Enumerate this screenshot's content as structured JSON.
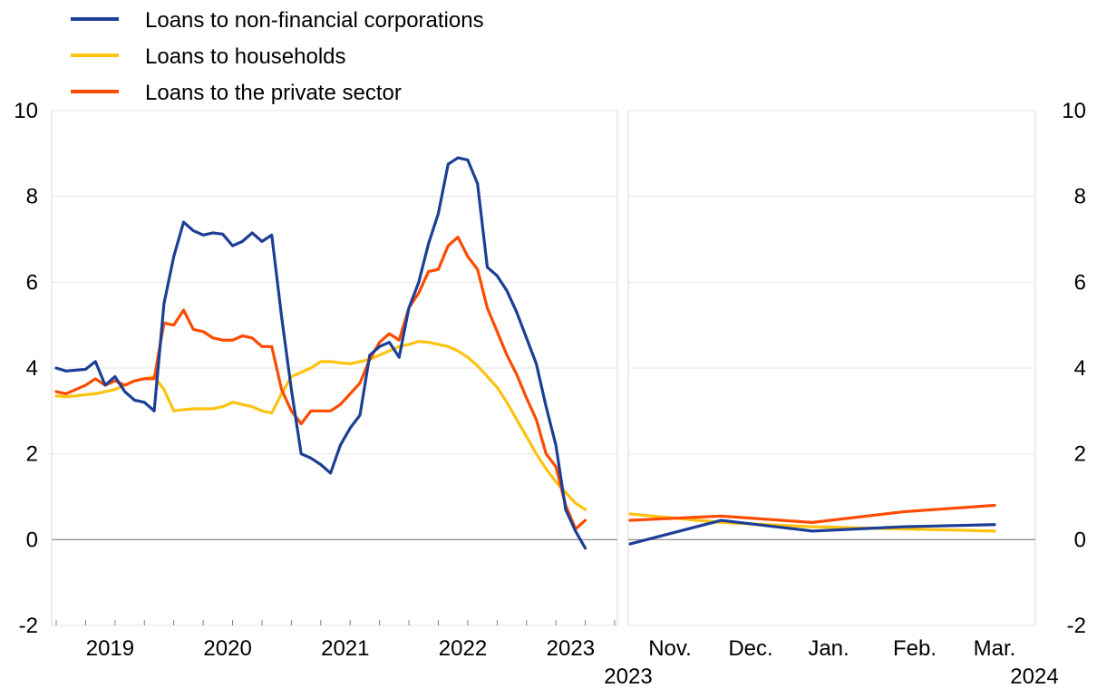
{
  "legend": [
    {
      "label": "Loans to non-financial corporations",
      "color": "#1c3f95"
    },
    {
      "label": "Loans to households",
      "color": "#ffc20e"
    },
    {
      "label": "Loans to the private sector",
      "color": "#ff4b00"
    }
  ],
  "chart_data": [
    {
      "type": "line",
      "panel": "monthly",
      "x_tick_labels": [
        "2019",
        "2020",
        "2021",
        "2022",
        "2023"
      ],
      "ylim": [
        -2,
        10
      ],
      "y_ticks": [
        -2,
        0,
        2,
        4,
        6,
        8,
        10
      ],
      "grid": true,
      "legend_position": "top-left",
      "x": [
        "2019-01",
        "2019-02",
        "2019-03",
        "2019-04",
        "2019-05",
        "2019-06",
        "2019-07",
        "2019-08",
        "2019-09",
        "2019-10",
        "2019-11",
        "2019-12",
        "2020-01",
        "2020-02",
        "2020-03",
        "2020-04",
        "2020-05",
        "2020-06",
        "2020-07",
        "2020-08",
        "2020-09",
        "2020-10",
        "2020-11",
        "2020-12",
        "2021-01",
        "2021-02",
        "2021-03",
        "2021-04",
        "2021-05",
        "2021-06",
        "2021-07",
        "2021-08",
        "2021-09",
        "2021-10",
        "2021-11",
        "2021-12",
        "2022-01",
        "2022-02",
        "2022-03",
        "2022-04",
        "2022-05",
        "2022-06",
        "2022-07",
        "2022-08",
        "2022-09",
        "2022-10",
        "2022-11",
        "2022-12",
        "2023-01",
        "2023-02",
        "2023-03",
        "2023-04",
        "2023-05",
        "2023-06",
        "2023-07",
        "2023-08",
        "2023-09",
        "2023-10"
      ],
      "series": [
        {
          "name": "Loans to non-financial corporations",
          "color": "#1c3f95",
          "values": [
            4.0,
            3.93,
            3.95,
            3.97,
            4.15,
            3.6,
            3.8,
            3.45,
            3.25,
            3.2,
            3.0,
            5.5,
            6.6,
            7.4,
            7.2,
            7.1,
            7.15,
            7.12,
            6.85,
            6.95,
            7.15,
            6.95,
            7.1,
            5.2,
            3.5,
            2.0,
            1.9,
            1.75,
            1.55,
            2.2,
            2.6,
            2.9,
            4.3,
            4.5,
            4.6,
            4.25,
            5.4,
            6.0,
            6.9,
            7.6,
            8.75,
            8.9,
            8.85,
            8.3,
            6.35,
            6.15,
            5.8,
            5.3,
            4.7,
            4.1,
            3.1,
            2.2,
            0.7,
            0.2,
            -0.2,
            null,
            null,
            null
          ]
        },
        {
          "name": "Loans to households",
          "color": "#ffc20e",
          "values": [
            3.35,
            3.33,
            3.35,
            3.38,
            3.4,
            3.45,
            3.5,
            3.6,
            3.7,
            3.75,
            3.8,
            3.5,
            3.0,
            3.03,
            3.05,
            3.05,
            3.05,
            3.1,
            3.2,
            3.15,
            3.1,
            3.0,
            2.95,
            3.4,
            3.8,
            3.9,
            4.0,
            4.15,
            4.15,
            4.12,
            4.1,
            4.15,
            4.2,
            4.3,
            4.4,
            4.5,
            4.55,
            4.62,
            4.6,
            4.55,
            4.5,
            4.4,
            4.25,
            4.05,
            3.8,
            3.55,
            3.2,
            2.8,
            2.4,
            2.0,
            1.65,
            1.35,
            1.1,
            0.85,
            0.7,
            null,
            null,
            null
          ]
        },
        {
          "name": "Loans to the private sector",
          "color": "#ff4b00",
          "values": [
            3.45,
            3.4,
            3.5,
            3.6,
            3.75,
            3.6,
            3.7,
            3.6,
            3.7,
            3.75,
            3.75,
            5.05,
            5.0,
            5.35,
            4.9,
            4.85,
            4.7,
            4.65,
            4.65,
            4.75,
            4.7,
            4.5,
            4.5,
            3.5,
            3.0,
            2.7,
            3.0,
            3.0,
            3.0,
            3.15,
            3.4,
            3.65,
            4.2,
            4.6,
            4.8,
            4.65,
            5.4,
            5.75,
            6.25,
            6.3,
            6.85,
            7.05,
            6.6,
            6.3,
            5.4,
            4.85,
            4.3,
            3.85,
            3.3,
            2.8,
            2.0,
            1.7,
            0.8,
            0.25,
            0.45,
            null,
            null,
            null
          ]
        }
      ]
    },
    {
      "type": "line",
      "panel": "recent months",
      "x_tick_labels": [
        "Nov.",
        "Dec.",
        "Jan.",
        "Feb.",
        "Mar."
      ],
      "year_labels": [
        "2023",
        "2024"
      ],
      "ylim": [
        -2,
        10
      ],
      "y_ticks": [
        -2,
        0,
        2,
        4,
        6,
        8,
        10
      ],
      "grid": true,
      "series": [
        {
          "name": "Loans to non-financial corporations",
          "color": "#1c3f95",
          "values": [
            -0.1,
            0.45,
            0.2,
            0.3,
            0.35
          ]
        },
        {
          "name": "Loans to households",
          "color": "#ffc20e",
          "values": [
            0.6,
            0.4,
            0.3,
            0.25,
            0.2
          ]
        },
        {
          "name": "Loans to the private sector",
          "color": "#ff4b00",
          "values": [
            0.45,
            0.55,
            0.4,
            0.65,
            0.8
          ]
        }
      ]
    }
  ]
}
